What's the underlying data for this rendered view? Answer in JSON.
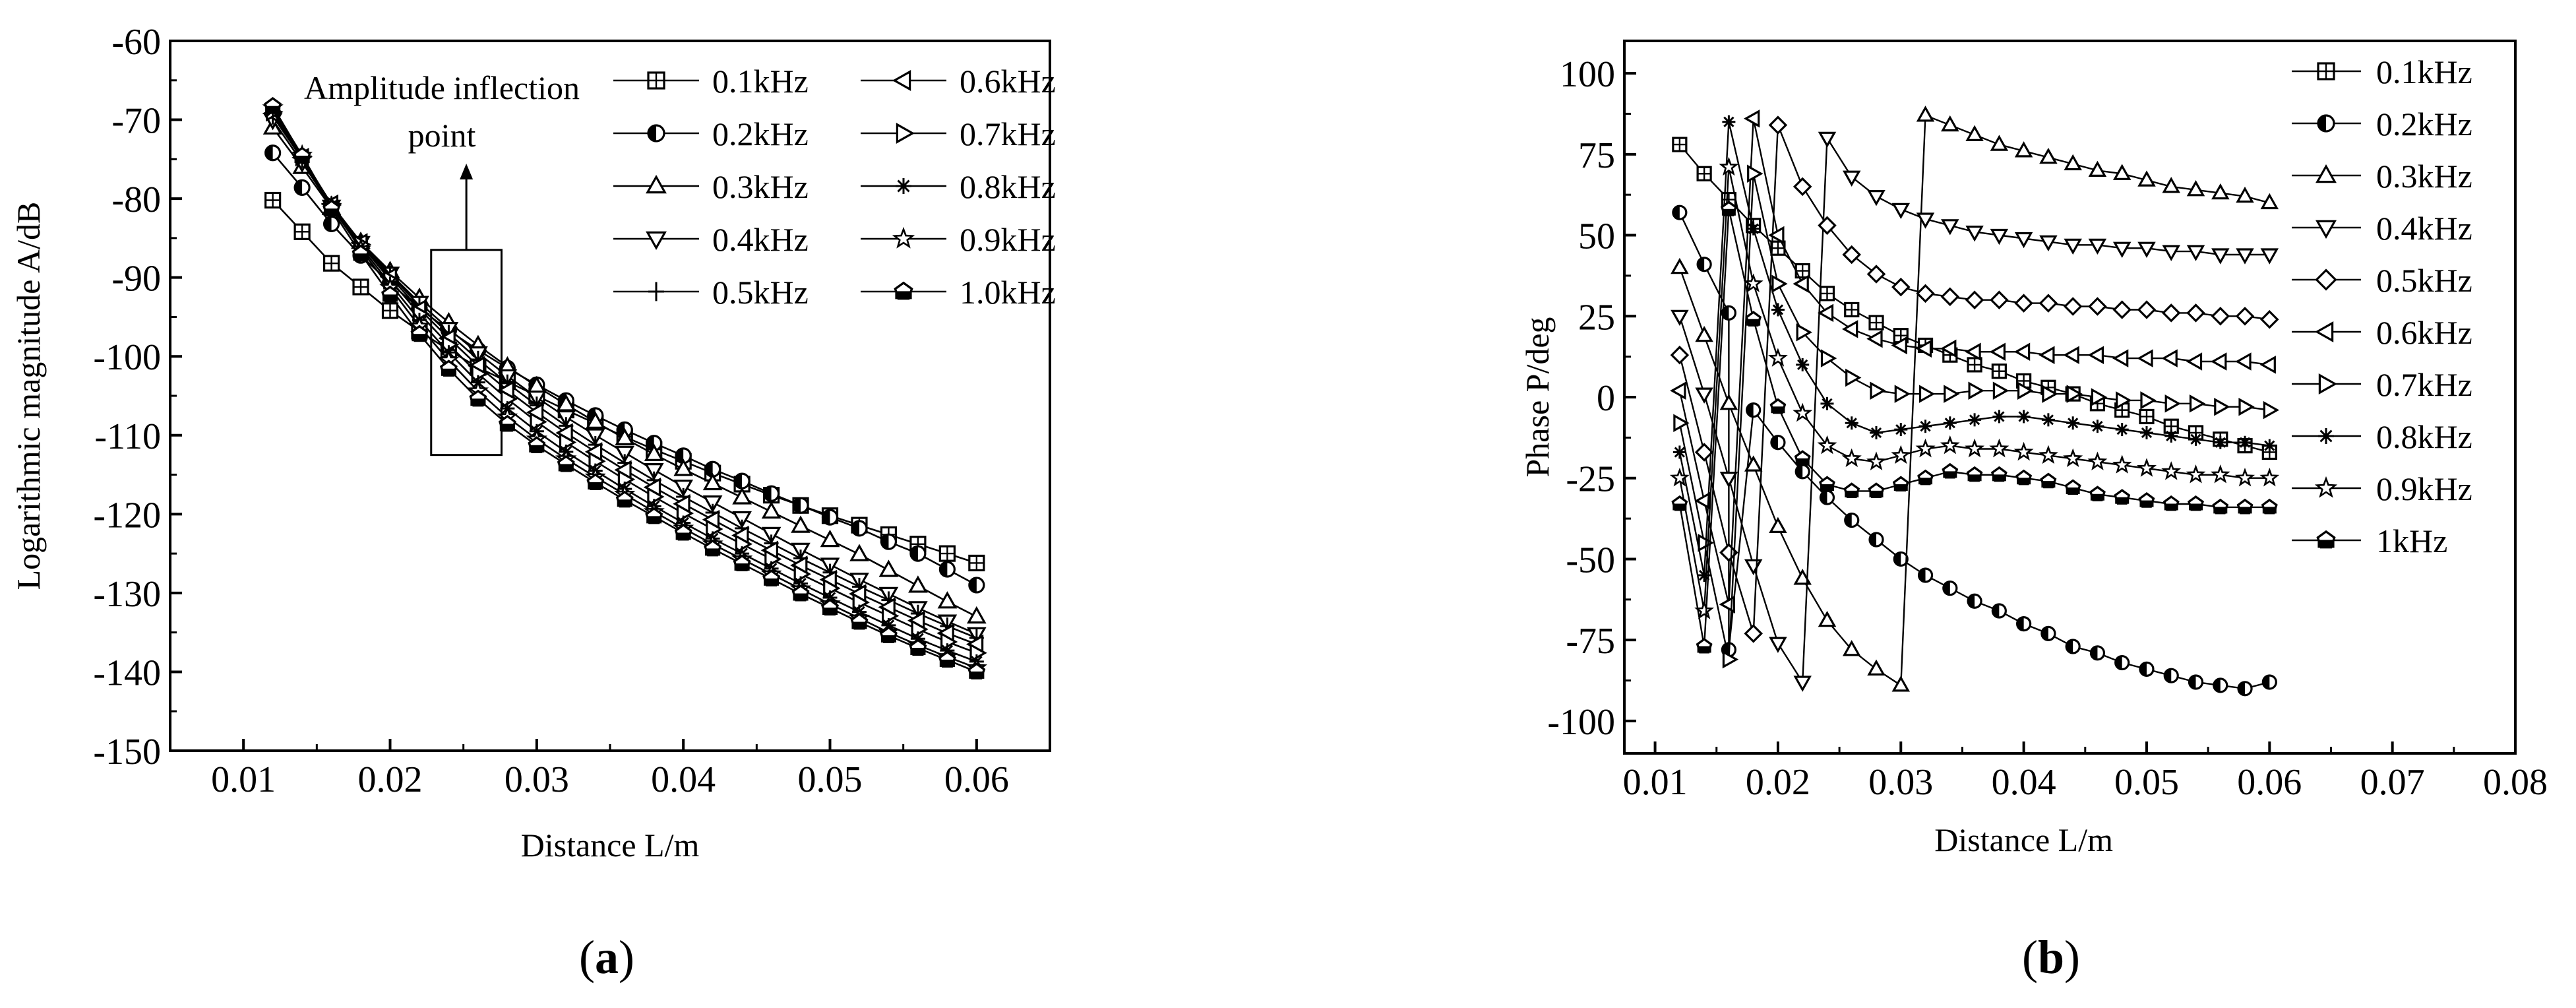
{
  "panels": [
    {
      "label_open": "(",
      "label_letter": "a",
      "label_close": ")"
    },
    {
      "label_open": "(",
      "label_letter": "b",
      "label_close": ")"
    }
  ],
  "chart_data": [
    {
      "type": "line",
      "xlabel": "Distance L/m",
      "ylabel": "Logarithmic magnitude A/dB",
      "xlim": [
        0.005,
        0.065
      ],
      "ylim": [
        -150,
        -60
      ],
      "xticks": [
        0.01,
        0.02,
        0.03,
        0.04,
        0.05,
        0.06
      ],
      "xtick_labels": [
        "0.01",
        "0.02",
        "0.03",
        "0.04",
        "0.05",
        "0.06"
      ],
      "yticks": [
        -150,
        -140,
        -130,
        -120,
        -110,
        -100,
        -90,
        -80,
        -70,
        -60
      ],
      "ytick_labels": [
        "-150",
        "-140",
        "-130",
        "-120",
        "-110",
        "-100",
        "-90",
        "-80",
        "-70",
        "-60"
      ],
      "grid": false,
      "legend_position": "top-right",
      "legend_columns": 2,
      "annotation": {
        "lines": [
          "Amplitude inflection",
          "point"
        ],
        "box_x": [
          0.0228,
          0.0276
        ],
        "box_y": [
          -112.5,
          -86.5
        ]
      },
      "x": [
        0.012,
        0.014,
        0.016,
        0.018,
        0.02,
        0.022,
        0.024,
        0.026,
        0.028,
        0.03,
        0.032,
        0.034,
        0.036,
        0.038,
        0.04,
        0.042,
        0.044,
        0.046,
        0.048,
        0.05,
        0.052,
        0.054,
        0.056,
        0.058,
        0.06
      ],
      "series": [
        {
          "name": "0.1kHz",
          "marker": "square-plus",
          "values": [
            -80.2,
            -84.2,
            -88.2,
            -91.2,
            -94.2,
            -96.8,
            -99.2,
            -101.4,
            -103.2,
            -105.0,
            -106.8,
            -108.5,
            -110.2,
            -111.8,
            -113.3,
            -114.8,
            -116.2,
            -117.6,
            -118.9,
            -120.2,
            -121.4,
            -122.6,
            -123.8,
            -125.0,
            -126.2
          ]
        },
        {
          "name": "0.2kHz",
          "marker": "half-circle",
          "values": [
            -74.2,
            -78.6,
            -83.2,
            -87.2,
            -90.7,
            -93.9,
            -96.7,
            -99.2,
            -101.5,
            -103.6,
            -105.6,
            -107.5,
            -109.3,
            -111.0,
            -112.6,
            -114.3,
            -115.8,
            -117.4,
            -118.9,
            -120.4,
            -121.8,
            -123.5,
            -125.0,
            -127.0,
            -129.0
          ]
        },
        {
          "name": "0.3kHz",
          "marker": "triangle-up",
          "values": [
            -71.0,
            -76.0,
            -81.2,
            -85.5,
            -89.2,
            -92.6,
            -95.7,
            -98.6,
            -101.3,
            -103.8,
            -106.1,
            -108.3,
            -110.4,
            -112.4,
            -114.3,
            -116.1,
            -117.9,
            -119.7,
            -121.5,
            -123.3,
            -125.1,
            -127.1,
            -129.1,
            -131.1,
            -133.0
          ]
        },
        {
          "name": "0.4kHz",
          "marker": "triangle-down",
          "values": [
            -70.0,
            -75.4,
            -81.0,
            -85.6,
            -89.5,
            -93.2,
            -96.5,
            -99.6,
            -102.5,
            -105.2,
            -107.7,
            -110.0,
            -112.2,
            -114.4,
            -116.5,
            -118.5,
            -120.5,
            -122.5,
            -124.5,
            -126.4,
            -128.3,
            -130.1,
            -131.9,
            -133.6,
            -135.2
          ]
        },
        {
          "name": "0.5kHz",
          "marker": "plus",
          "values": [
            -69.5,
            -75.0,
            -80.8,
            -85.5,
            -89.6,
            -93.6,
            -97.1,
            -100.4,
            -103.4,
            -106.2,
            -108.8,
            -111.2,
            -113.5,
            -115.7,
            -117.8,
            -119.8,
            -121.8,
            -123.7,
            -125.6,
            -127.4,
            -129.2,
            -130.9,
            -132.6,
            -134.2,
            -135.7
          ]
        },
        {
          "name": "0.6kHz",
          "marker": "triangle-left",
          "values": [
            -69.2,
            -74.8,
            -80.7,
            -85.6,
            -89.9,
            -94.0,
            -97.7,
            -101.2,
            -104.3,
            -107.1,
            -109.7,
            -112.1,
            -114.4,
            -116.6,
            -118.7,
            -120.7,
            -122.7,
            -124.6,
            -126.5,
            -128.3,
            -130.1,
            -131.8,
            -133.5,
            -135.1,
            -136.5
          ]
        },
        {
          "name": "0.7kHz",
          "marker": "triangle-right",
          "values": [
            -69.0,
            -74.7,
            -80.8,
            -85.8,
            -90.3,
            -94.6,
            -98.5,
            -102.2,
            -105.4,
            -108.3,
            -110.9,
            -113.3,
            -115.6,
            -117.8,
            -119.9,
            -121.9,
            -123.8,
            -125.7,
            -127.6,
            -129.4,
            -131.2,
            -132.9,
            -134.6,
            -136.2,
            -137.6
          ]
        },
        {
          "name": "0.8kHz",
          "marker": "asterisk",
          "values": [
            -68.8,
            -74.6,
            -80.9,
            -86.1,
            -90.8,
            -95.4,
            -99.5,
            -103.3,
            -106.6,
            -109.5,
            -112.1,
            -114.5,
            -116.8,
            -119.0,
            -121.1,
            -123.1,
            -125.0,
            -126.9,
            -128.8,
            -130.6,
            -132.4,
            -134.1,
            -135.8,
            -137.3,
            -138.7
          ]
        },
        {
          "name": "0.9kHz",
          "marker": "star",
          "values": [
            -68.5,
            -74.5,
            -81.0,
            -86.4,
            -91.3,
            -96.2,
            -100.5,
            -104.4,
            -107.7,
            -110.5,
            -113.0,
            -115.3,
            -117.5,
            -119.7,
            -121.8,
            -123.8,
            -125.7,
            -127.6,
            -129.5,
            -131.4,
            -133.2,
            -135.0,
            -136.6,
            -138.1,
            -139.5
          ]
        },
        {
          "name": "1.0kHz",
          "marker": "pentagon",
          "values": [
            -68.3,
            -74.6,
            -81.3,
            -87.0,
            -92.2,
            -97.2,
            -101.6,
            -105.4,
            -108.6,
            -111.3,
            -113.7,
            -116.0,
            -118.2,
            -120.3,
            -122.4,
            -124.4,
            -126.3,
            -128.2,
            -130.1,
            -131.9,
            -133.7,
            -135.4,
            -137.0,
            -138.5,
            -140.0
          ]
        }
      ]
    },
    {
      "type": "line",
      "xlabel": "Distance L/m",
      "ylabel": "Phase P/deg",
      "xlim": [
        0.0075,
        0.08
      ],
      "ylim": [
        -110,
        110
      ],
      "xticks": [
        0.01,
        0.02,
        0.03,
        0.04,
        0.05,
        0.06,
        0.07,
        0.08
      ],
      "xtick_labels": [
        "0.01",
        "0.02",
        "0.03",
        "0.04",
        "0.05",
        "0.06",
        "0.07",
        "0.08"
      ],
      "yticks": [
        -100,
        -75,
        -50,
        -25,
        0,
        25,
        50,
        75,
        100
      ],
      "ytick_labels": [
        "-100",
        "-75",
        "-50",
        "-25",
        "0",
        "25",
        "50",
        "75",
        "100"
      ],
      "grid": false,
      "legend_position": "top-right",
      "legend_columns": 1,
      "series": [
        {
          "name": "0.1kHz",
          "marker": "square-plus",
          "x": [
            0.012,
            0.014,
            0.016,
            0.018,
            0.02,
            0.022,
            0.024,
            0.026,
            0.028,
            0.03,
            0.032,
            0.034,
            0.036,
            0.038,
            0.04,
            0.042,
            0.044,
            0.046,
            0.048,
            0.05,
            0.052,
            0.054,
            0.056,
            0.058,
            0.06
          ],
          "values": [
            78,
            69,
            61,
            53,
            46,
            39,
            32,
            27,
            23,
            19,
            16,
            13,
            10,
            8,
            5,
            3,
            1,
            -2,
            -4,
            -6,
            -9,
            -11,
            -13,
            -15,
            -17
          ]
        },
        {
          "name": "0.2kHz",
          "marker": "half-circle",
          "x": [
            0.012,
            0.014,
            0.016,
            0.016,
            0.018,
            0.02,
            0.022,
            0.024,
            0.026,
            0.028,
            0.03,
            0.032,
            0.034,
            0.036,
            0.038,
            0.04,
            0.042,
            0.044,
            0.046,
            0.048,
            0.05,
            0.052,
            0.054,
            0.056,
            0.058,
            0.06
          ],
          "values": [
            57,
            41,
            26,
            -78,
            -4,
            -14,
            -23,
            -31,
            -38,
            -44,
            -50,
            -55,
            -59,
            -63,
            -66,
            -70,
            -73,
            -77,
            -79,
            -82,
            -84,
            -86,
            -88,
            -89,
            -90,
            -88
          ]
        },
        {
          "name": "0.3kHz",
          "marker": "triangle-up",
          "x": [
            0.012,
            0.014,
            0.016,
            0.018,
            0.02,
            0.022,
            0.024,
            0.026,
            0.028,
            0.03,
            0.032,
            0.034,
            0.036,
            0.038,
            0.04,
            0.042,
            0.044,
            0.046,
            0.048,
            0.05,
            0.052,
            0.054,
            0.056,
            0.058,
            0.06
          ],
          "values": [
            40,
            19,
            -2,
            -21,
            -40,
            -56,
            -69,
            -78,
            -84,
            -89,
            87,
            84,
            81,
            78,
            76,
            74,
            72,
            70,
            69,
            67,
            65,
            64,
            63,
            62,
            60
          ]
        },
        {
          "name": "0.4kHz",
          "marker": "triangle-down",
          "x": [
            0.012,
            0.014,
            0.016,
            0.018,
            0.02,
            0.022,
            0.024,
            0.026,
            0.028,
            0.03,
            0.032,
            0.034,
            0.036,
            0.038,
            0.04,
            0.042,
            0.044,
            0.046,
            0.048,
            0.05,
            0.052,
            0.054,
            0.056,
            0.058,
            0.06
          ],
          "values": [
            25,
            1,
            -25,
            -52,
            -76,
            -88,
            80,
            68,
            62,
            58,
            55,
            53,
            51,
            50,
            49,
            48,
            47,
            47,
            46,
            46,
            45,
            45,
            44,
            44,
            44
          ]
        },
        {
          "name": "0.5kHz",
          "marker": "diamond",
          "x": [
            0.012,
            0.014,
            0.016,
            0.018,
            0.02,
            0.022,
            0.024,
            0.026,
            0.028,
            0.03,
            0.032,
            0.034,
            0.036,
            0.038,
            0.04,
            0.042,
            0.044,
            0.046,
            0.048,
            0.05,
            0.052,
            0.054,
            0.056,
            0.058,
            0.06
          ],
          "values": [
            13,
            -17,
            -48,
            -73,
            84,
            65,
            53,
            44,
            38,
            34,
            32,
            31,
            30,
            30,
            29,
            29,
            28,
            28,
            27,
            27,
            26,
            26,
            25,
            25,
            24
          ]
        },
        {
          "name": "0.6kHz",
          "marker": "triangle-left",
          "x": [
            0.012,
            0.014,
            0.016,
            0.018,
            0.02,
            0.022,
            0.024,
            0.026,
            0.028,
            0.03,
            0.032,
            0.034,
            0.036,
            0.038,
            0.04,
            0.042,
            0.044,
            0.046,
            0.048,
            0.05,
            0.052,
            0.054,
            0.056,
            0.058,
            0.06
          ],
          "values": [
            2,
            -32,
            -64,
            86,
            50,
            35,
            26,
            21,
            18,
            16,
            15,
            15,
            14,
            14,
            14,
            13,
            13,
            13,
            12,
            12,
            12,
            11,
            11,
            11,
            10
          ]
        },
        {
          "name": "0.7kHz",
          "marker": "triangle-right",
          "x": [
            0.012,
            0.014,
            0.016,
            0.018,
            0.02,
            0.022,
            0.024,
            0.026,
            0.028,
            0.03,
            0.032,
            0.034,
            0.036,
            0.038,
            0.04,
            0.042,
            0.044,
            0.046,
            0.048,
            0.05,
            0.052,
            0.054,
            0.056,
            0.058,
            0.06
          ],
          "values": [
            -8,
            -45,
            -81,
            69,
            35,
            20,
            12,
            6,
            2,
            1,
            1,
            1,
            2,
            2,
            2,
            1,
            1,
            0,
            -1,
            -1,
            -2,
            -2,
            -3,
            -3,
            -4
          ]
        },
        {
          "name": "0.8kHz",
          "marker": "asterisk",
          "x": [
            0.012,
            0.014,
            0.016,
            0.018,
            0.02,
            0.022,
            0.024,
            0.026,
            0.028,
            0.03,
            0.032,
            0.034,
            0.036,
            0.038,
            0.04,
            0.042,
            0.044,
            0.046,
            0.048,
            0.05,
            0.052,
            0.054,
            0.056,
            0.058,
            0.06
          ],
          "values": [
            -17,
            -55,
            85,
            52,
            27,
            10,
            -2,
            -8,
            -11,
            -10,
            -9,
            -8,
            -7,
            -6,
            -6,
            -7,
            -8,
            -9,
            -10,
            -11,
            -12,
            -13,
            -14,
            -14,
            -15
          ]
        },
        {
          "name": "0.9kHz",
          "marker": "star",
          "x": [
            0.012,
            0.014,
            0.016,
            0.018,
            0.02,
            0.022,
            0.024,
            0.026,
            0.028,
            0.03,
            0.032,
            0.034,
            0.036,
            0.038,
            0.04,
            0.042,
            0.044,
            0.046,
            0.048,
            0.05,
            0.052,
            0.054,
            0.056,
            0.058,
            0.06
          ],
          "values": [
            -25,
            -66,
            71,
            35,
            12,
            -5,
            -15,
            -19,
            -20,
            -18,
            -16,
            -15,
            -16,
            -16,
            -17,
            -18,
            -19,
            -20,
            -21,
            -22,
            -23,
            -24,
            -24,
            -25,
            -25
          ]
        },
        {
          "name": "1kHz",
          "marker": "pentagon",
          "x": [
            0.012,
            0.014,
            0.016,
            0.018,
            0.02,
            0.022,
            0.024,
            0.026,
            0.028,
            0.03,
            0.032,
            0.034,
            0.036,
            0.038,
            0.04,
            0.042,
            0.044,
            0.046,
            0.048,
            0.05,
            0.052,
            0.054,
            0.056,
            0.058,
            0.06
          ],
          "values": [
            -33,
            -77,
            58,
            24,
            -3,
            -19,
            -27,
            -29,
            -29,
            -27,
            -25,
            -23,
            -24,
            -24,
            -25,
            -26,
            -28,
            -30,
            -31,
            -32,
            -33,
            -33,
            -34,
            -34,
            -34
          ]
        }
      ]
    }
  ]
}
